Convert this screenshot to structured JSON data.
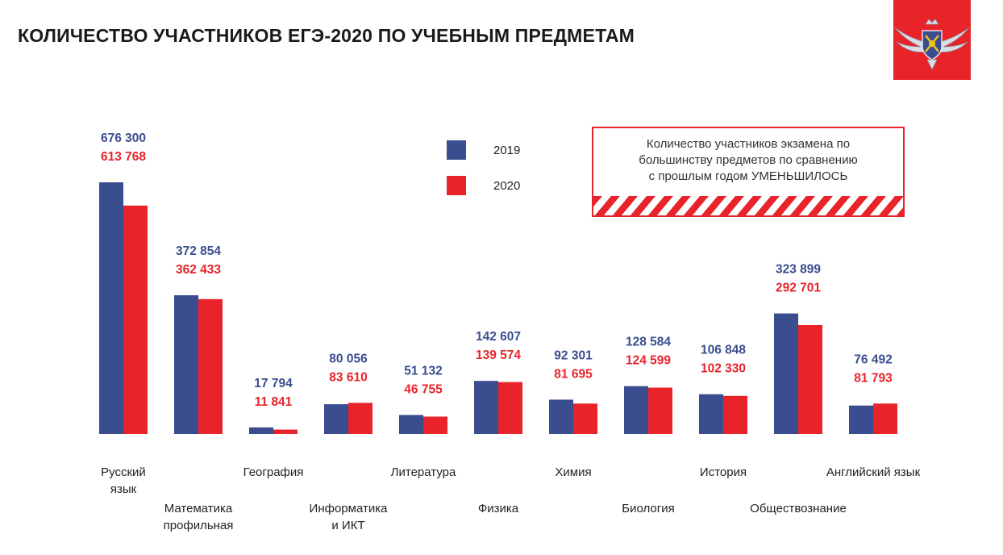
{
  "header": {
    "title": "КОЛИЧЕСТВО УЧАСТНИКОВ ЕГЭ-2020 ПО УЧЕБНЫМ ПРЕДМЕТАМ"
  },
  "notice": {
    "line1": "Количество участников экзамена по",
    "line2": "большинству предметов по сравнению",
    "line3": "с прошлым годом УМЕНЬШИЛОСЬ",
    "color": "#e8232a"
  },
  "emblem": {
    "icon": "rosobrnadzor-emblem-icon",
    "background": "#e8232a"
  },
  "chart_data": {
    "type": "bar",
    "title": "КОЛИЧЕСТВО УЧАСТНИКОВ ЕГЭ-2020 ПО УЧЕБНЫМ ПРЕДМЕТАМ",
    "categories": [
      [
        "Русский",
        "язык"
      ],
      [
        "Математика",
        "профильная"
      ],
      [
        "География"
      ],
      [
        "Информатика",
        "и ИКТ"
      ],
      [
        "Литература"
      ],
      [
        "Физика"
      ],
      [
        "Химия"
      ],
      [
        "Биология"
      ],
      [
        "История"
      ],
      [
        "Обществознание"
      ],
      [
        "Английский язык"
      ]
    ],
    "series": [
      {
        "name": "2019",
        "color": "#3a4d8f",
        "values": [
          676300,
          372854,
          17794,
          80056,
          51132,
          142607,
          92301,
          128584,
          106848,
          323899,
          76492
        ],
        "labels": [
          "676 300",
          "372 854",
          "17 794",
          "80 056",
          "51 132",
          "142 607",
          "92 301",
          "128 584",
          "106 848",
          "323 899",
          "76 492"
        ]
      },
      {
        "name": "2020",
        "color": "#e8232a",
        "values": [
          613768,
          362433,
          11841,
          83610,
          46755,
          139574,
          81695,
          124599,
          102330,
          292701,
          81793
        ],
        "labels": [
          "613 768",
          "362 433",
          "11 841",
          "83 610",
          "46 755",
          "139 574",
          "81 695",
          "124 599",
          "102 330",
          "292 701",
          "81 793"
        ]
      }
    ],
    "legend_position": "top-center",
    "grid": false,
    "xlabel": "",
    "ylabel": ""
  }
}
